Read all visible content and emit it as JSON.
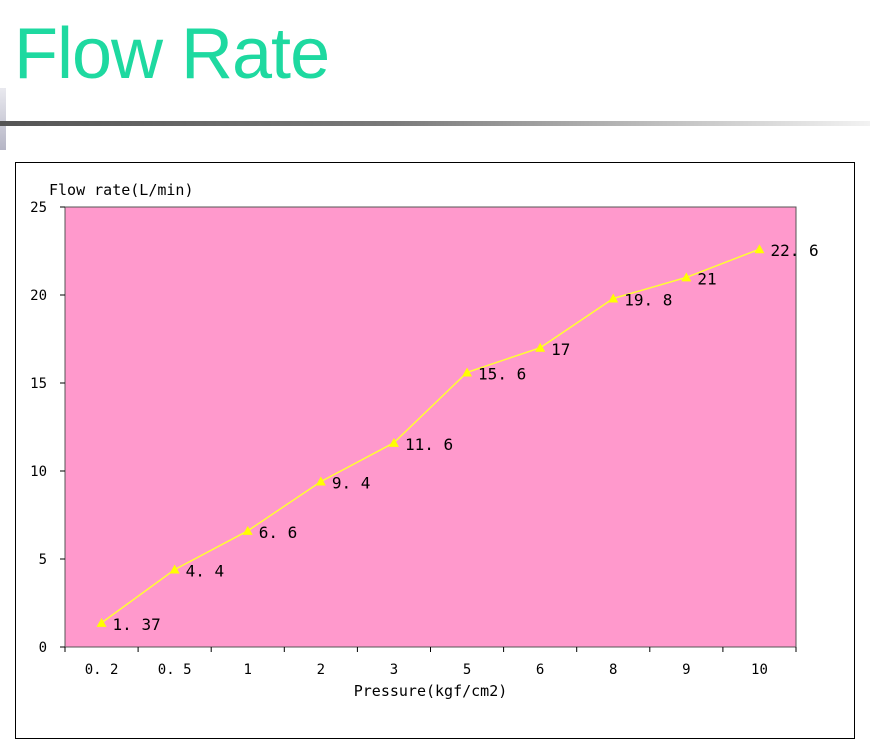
{
  "slide": {
    "title": "Flow Rate"
  },
  "colors": {
    "title": "#1ed9a0",
    "plot_background": "#ff99cc",
    "series_line": "#ffff33",
    "marker": "#ffff00"
  },
  "chart_data": {
    "type": "line",
    "title": "",
    "xlabel": "Pressure(kgf/cm2)",
    "ylabel": "Flow rate(L/min)",
    "categories": [
      "0.2",
      "0.5",
      "1",
      "2",
      "3",
      "5",
      "6",
      "8",
      "9",
      "10"
    ],
    "tick_labels": [
      "0. 2",
      "0. 5",
      "1",
      "2",
      "3",
      "5",
      "6",
      "8",
      "9",
      "10"
    ],
    "series": [
      {
        "name": "Flow rate",
        "values": [
          1.37,
          4.4,
          6.6,
          9.4,
          11.6,
          15.6,
          17,
          19.8,
          21,
          22.6
        ],
        "labels": [
          "1. 37",
          "4. 4",
          "6. 6",
          "9. 4",
          "11. 6",
          "15. 6",
          "17",
          "19. 8",
          "21",
          "22. 6"
        ]
      }
    ],
    "ylim": [
      0,
      25
    ],
    "yticks": [
      0,
      5,
      10,
      15,
      20,
      25
    ],
    "grid": false,
    "legend": "none"
  }
}
